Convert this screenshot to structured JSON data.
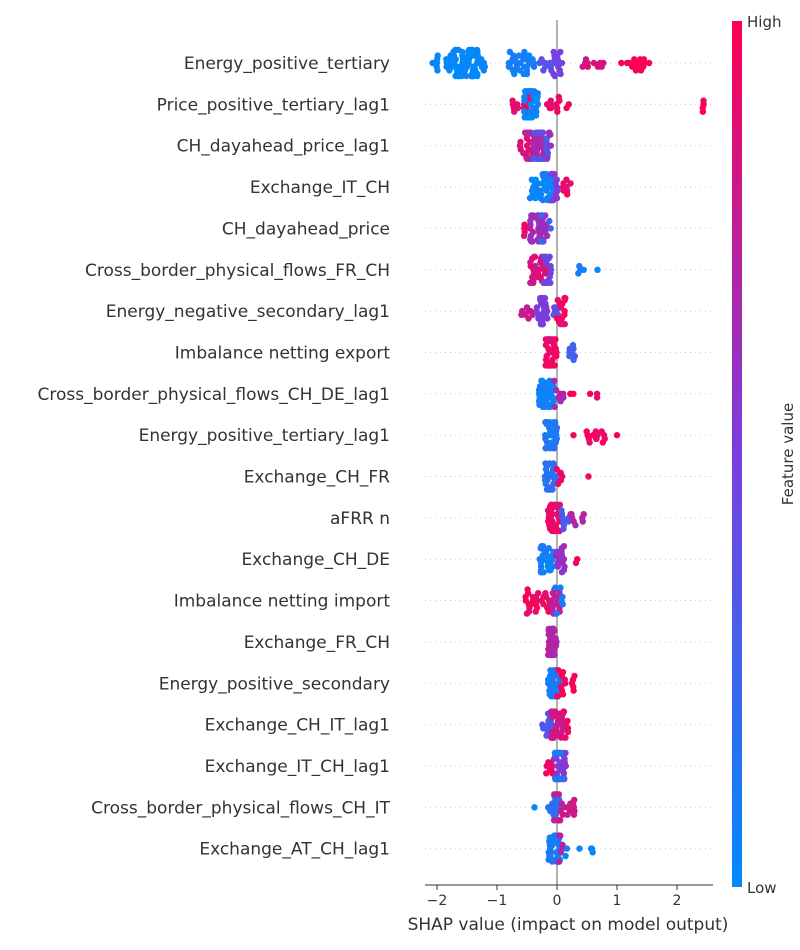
{
  "chart_data": {
    "type": "scatter",
    "subtype": "shap-beeswarm",
    "xlabel": "SHAP value (impact on model output)",
    "xlim": [
      -2.2,
      2.6
    ],
    "xticks": [
      -2,
      -1,
      0,
      1,
      2
    ],
    "xtick_labels": [
      "−2",
      "−1",
      "0",
      "1",
      "2"
    ],
    "zero_line": 0,
    "colorbar": {
      "title": "Feature value",
      "high_label": "High",
      "low_label": "Low",
      "low_color": "#008bfb",
      "mid_color": "#7a3ee0",
      "high_color": "#ff0052"
    },
    "features": [
      {
        "name": "Energy_positive_tertiary",
        "groups": [
          {
            "from": -2.1,
            "to": -1.95,
            "n": 6,
            "c": 0.0
          },
          {
            "from": -1.85,
            "to": -1.2,
            "n": 70,
            "c": 0.02
          },
          {
            "from": -0.85,
            "to": -0.35,
            "n": 30,
            "c": 0.08
          },
          {
            "from": -0.3,
            "to": -0.05,
            "n": 8,
            "c": 0.35
          },
          {
            "from": -0.1,
            "to": 0.1,
            "n": 14,
            "c": 0.45
          },
          {
            "from": 0.4,
            "to": 0.85,
            "n": 10,
            "c": 0.85
          },
          {
            "from": 1.05,
            "to": 1.55,
            "n": 16,
            "c": 0.98
          }
        ]
      },
      {
        "name": "Price_positive_tertiary_lag1",
        "groups": [
          {
            "from": -0.75,
            "to": -0.45,
            "n": 16,
            "c": 0.9
          },
          {
            "from": -0.55,
            "to": -0.3,
            "n": 40,
            "c": 0.05
          },
          {
            "from": -0.2,
            "to": 0.05,
            "n": 10,
            "c": 0.9
          },
          {
            "from": 0.1,
            "to": 0.2,
            "n": 2,
            "c": 1.0
          },
          {
            "from": 2.42,
            "to": 2.5,
            "n": 4,
            "c": 1.0
          }
        ]
      },
      {
        "name": "CH_dayahead_price_lag1",
        "groups": [
          {
            "from": -0.65,
            "to": -0.45,
            "n": 14,
            "c": 0.9
          },
          {
            "from": -0.5,
            "to": -0.2,
            "n": 40,
            "c": 0.7
          },
          {
            "from": -0.4,
            "to": -0.15,
            "n": 20,
            "c": 0.35
          },
          {
            "from": -0.2,
            "to": -0.1,
            "n": 6,
            "c": 0.6
          }
        ]
      },
      {
        "name": "Exchange_IT_CH",
        "groups": [
          {
            "from": -0.45,
            "to": -0.05,
            "n": 45,
            "c": 0.05
          },
          {
            "from": -0.1,
            "to": 0.1,
            "n": 10,
            "c": 0.55
          },
          {
            "from": 0.05,
            "to": 0.25,
            "n": 8,
            "c": 0.92
          }
        ]
      },
      {
        "name": "CH_dayahead_price",
        "groups": [
          {
            "from": -0.55,
            "to": -0.4,
            "n": 6,
            "c": 0.9
          },
          {
            "from": -0.45,
            "to": -0.15,
            "n": 36,
            "c": 0.65
          },
          {
            "from": -0.3,
            "to": -0.1,
            "n": 8,
            "c": 0.3
          }
        ]
      },
      {
        "name": "Cross_border_physical_flows_FR_CH",
        "groups": [
          {
            "from": -0.45,
            "to": -0.15,
            "n": 28,
            "c": 0.85
          },
          {
            "from": -0.3,
            "to": -0.1,
            "n": 18,
            "c": 0.45
          },
          {
            "from": 0.35,
            "to": 0.45,
            "n": 4,
            "c": 0.05
          },
          {
            "from": 0.65,
            "to": 0.7,
            "n": 1,
            "c": 0.05
          }
        ]
      },
      {
        "name": "Energy_negative_secondary_lag1",
        "groups": [
          {
            "from": -0.6,
            "to": -0.4,
            "n": 8,
            "c": 0.8
          },
          {
            "from": -0.35,
            "to": -0.15,
            "n": 26,
            "c": 0.5
          },
          {
            "from": -0.1,
            "to": 0.05,
            "n": 6,
            "c": 0.4
          },
          {
            "from": 0.0,
            "to": 0.15,
            "n": 16,
            "c": 0.95
          }
        ]
      },
      {
        "name": "Imbalance netting export",
        "groups": [
          {
            "from": -0.2,
            "to": 0.0,
            "n": 46,
            "c": 0.93
          },
          {
            "from": 0.2,
            "to": 0.3,
            "n": 8,
            "c": 0.3
          }
        ]
      },
      {
        "name": "Cross_border_physical_flows_CH_DE_lag1",
        "groups": [
          {
            "from": -0.3,
            "to": -0.05,
            "n": 34,
            "c": 0.05
          },
          {
            "from": -0.05,
            "to": 0.15,
            "n": 8,
            "c": 0.7
          },
          {
            "from": 0.2,
            "to": 0.3,
            "n": 2,
            "c": 0.95
          },
          {
            "from": 0.55,
            "to": 0.7,
            "n": 3,
            "c": 0.95
          }
        ]
      },
      {
        "name": "Energy_positive_tertiary_lag1",
        "groups": [
          {
            "from": -0.2,
            "to": 0.0,
            "n": 30,
            "c": 0.12
          },
          {
            "from": 0.25,
            "to": 0.3,
            "n": 1,
            "c": 0.95
          },
          {
            "from": 0.45,
            "to": 0.95,
            "n": 13,
            "c": 0.95
          },
          {
            "from": 0.98,
            "to": 1.02,
            "n": 1,
            "c": 0.95
          }
        ]
      },
      {
        "name": "Exchange_CH_FR",
        "groups": [
          {
            "from": -0.2,
            "to": 0.0,
            "n": 26,
            "c": 0.15
          },
          {
            "from": -0.05,
            "to": 0.1,
            "n": 6,
            "c": 0.9
          },
          {
            "from": 0.5,
            "to": 0.55,
            "n": 1,
            "c": 0.95
          }
        ]
      },
      {
        "name": "aFRR n",
        "groups": [
          {
            "from": -0.15,
            "to": 0.05,
            "n": 48,
            "c": 0.93
          },
          {
            "from": 0.05,
            "to": 0.2,
            "n": 8,
            "c": 0.3
          },
          {
            "from": 0.2,
            "to": 0.45,
            "n": 8,
            "c": 0.7
          }
        ]
      },
      {
        "name": "Exchange_CH_DE",
        "groups": [
          {
            "from": -0.3,
            "to": -0.05,
            "n": 26,
            "c": 0.08
          },
          {
            "from": -0.05,
            "to": 0.15,
            "n": 14,
            "c": 0.6
          },
          {
            "from": 0.3,
            "to": 0.35,
            "n": 2,
            "c": 0.95
          }
        ]
      },
      {
        "name": "Imbalance netting import",
        "groups": [
          {
            "from": -0.55,
            "to": -0.1,
            "n": 26,
            "c": 0.95
          },
          {
            "from": -0.1,
            "to": 0.05,
            "n": 16,
            "c": 0.75
          },
          {
            "from": -0.05,
            "to": 0.1,
            "n": 6,
            "c": 0.1
          }
        ]
      },
      {
        "name": "Exchange_FR_CH",
        "groups": [
          {
            "from": -0.15,
            "to": 0.0,
            "n": 34,
            "c": 0.7
          }
        ]
      },
      {
        "name": "Energy_positive_secondary",
        "groups": [
          {
            "from": -0.15,
            "to": 0.05,
            "n": 30,
            "c": 0.1
          },
          {
            "from": 0.0,
            "to": 0.3,
            "n": 14,
            "c": 0.95
          }
        ]
      },
      {
        "name": "Exchange_CH_IT_lag1",
        "groups": [
          {
            "from": -0.25,
            "to": -0.05,
            "n": 12,
            "c": 0.35
          },
          {
            "from": -0.1,
            "to": 0.1,
            "n": 30,
            "c": 0.8
          },
          {
            "from": 0.05,
            "to": 0.2,
            "n": 10,
            "c": 0.9
          }
        ]
      },
      {
        "name": "Exchange_IT_CH_lag1",
        "groups": [
          {
            "from": -0.2,
            "to": -0.05,
            "n": 8,
            "c": 0.92
          },
          {
            "from": -0.05,
            "to": 0.15,
            "n": 30,
            "c": 0.55
          },
          {
            "from": -0.05,
            "to": 0.1,
            "n": 12,
            "c": 0.1
          }
        ]
      },
      {
        "name": "Cross_border_physical_flows_CH_IT",
        "groups": [
          {
            "from": -0.4,
            "to": -0.35,
            "n": 1,
            "c": 0.05
          },
          {
            "from": -0.15,
            "to": 0.05,
            "n": 20,
            "c": 0.2
          },
          {
            "from": -0.05,
            "to": 0.3,
            "n": 18,
            "c": 0.8
          }
        ]
      },
      {
        "name": "Exchange_AT_CH_lag1",
        "groups": [
          {
            "from": -0.15,
            "to": 0.05,
            "n": 30,
            "c": 0.1
          },
          {
            "from": 0.0,
            "to": 0.1,
            "n": 6,
            "c": 0.75
          },
          {
            "from": 0.1,
            "to": 0.2,
            "n": 2,
            "c": 0.05
          },
          {
            "from": 0.35,
            "to": 0.4,
            "n": 1,
            "c": 0.05
          },
          {
            "from": 0.55,
            "to": 0.6,
            "n": 3,
            "c": 0.05
          }
        ]
      }
    ]
  }
}
